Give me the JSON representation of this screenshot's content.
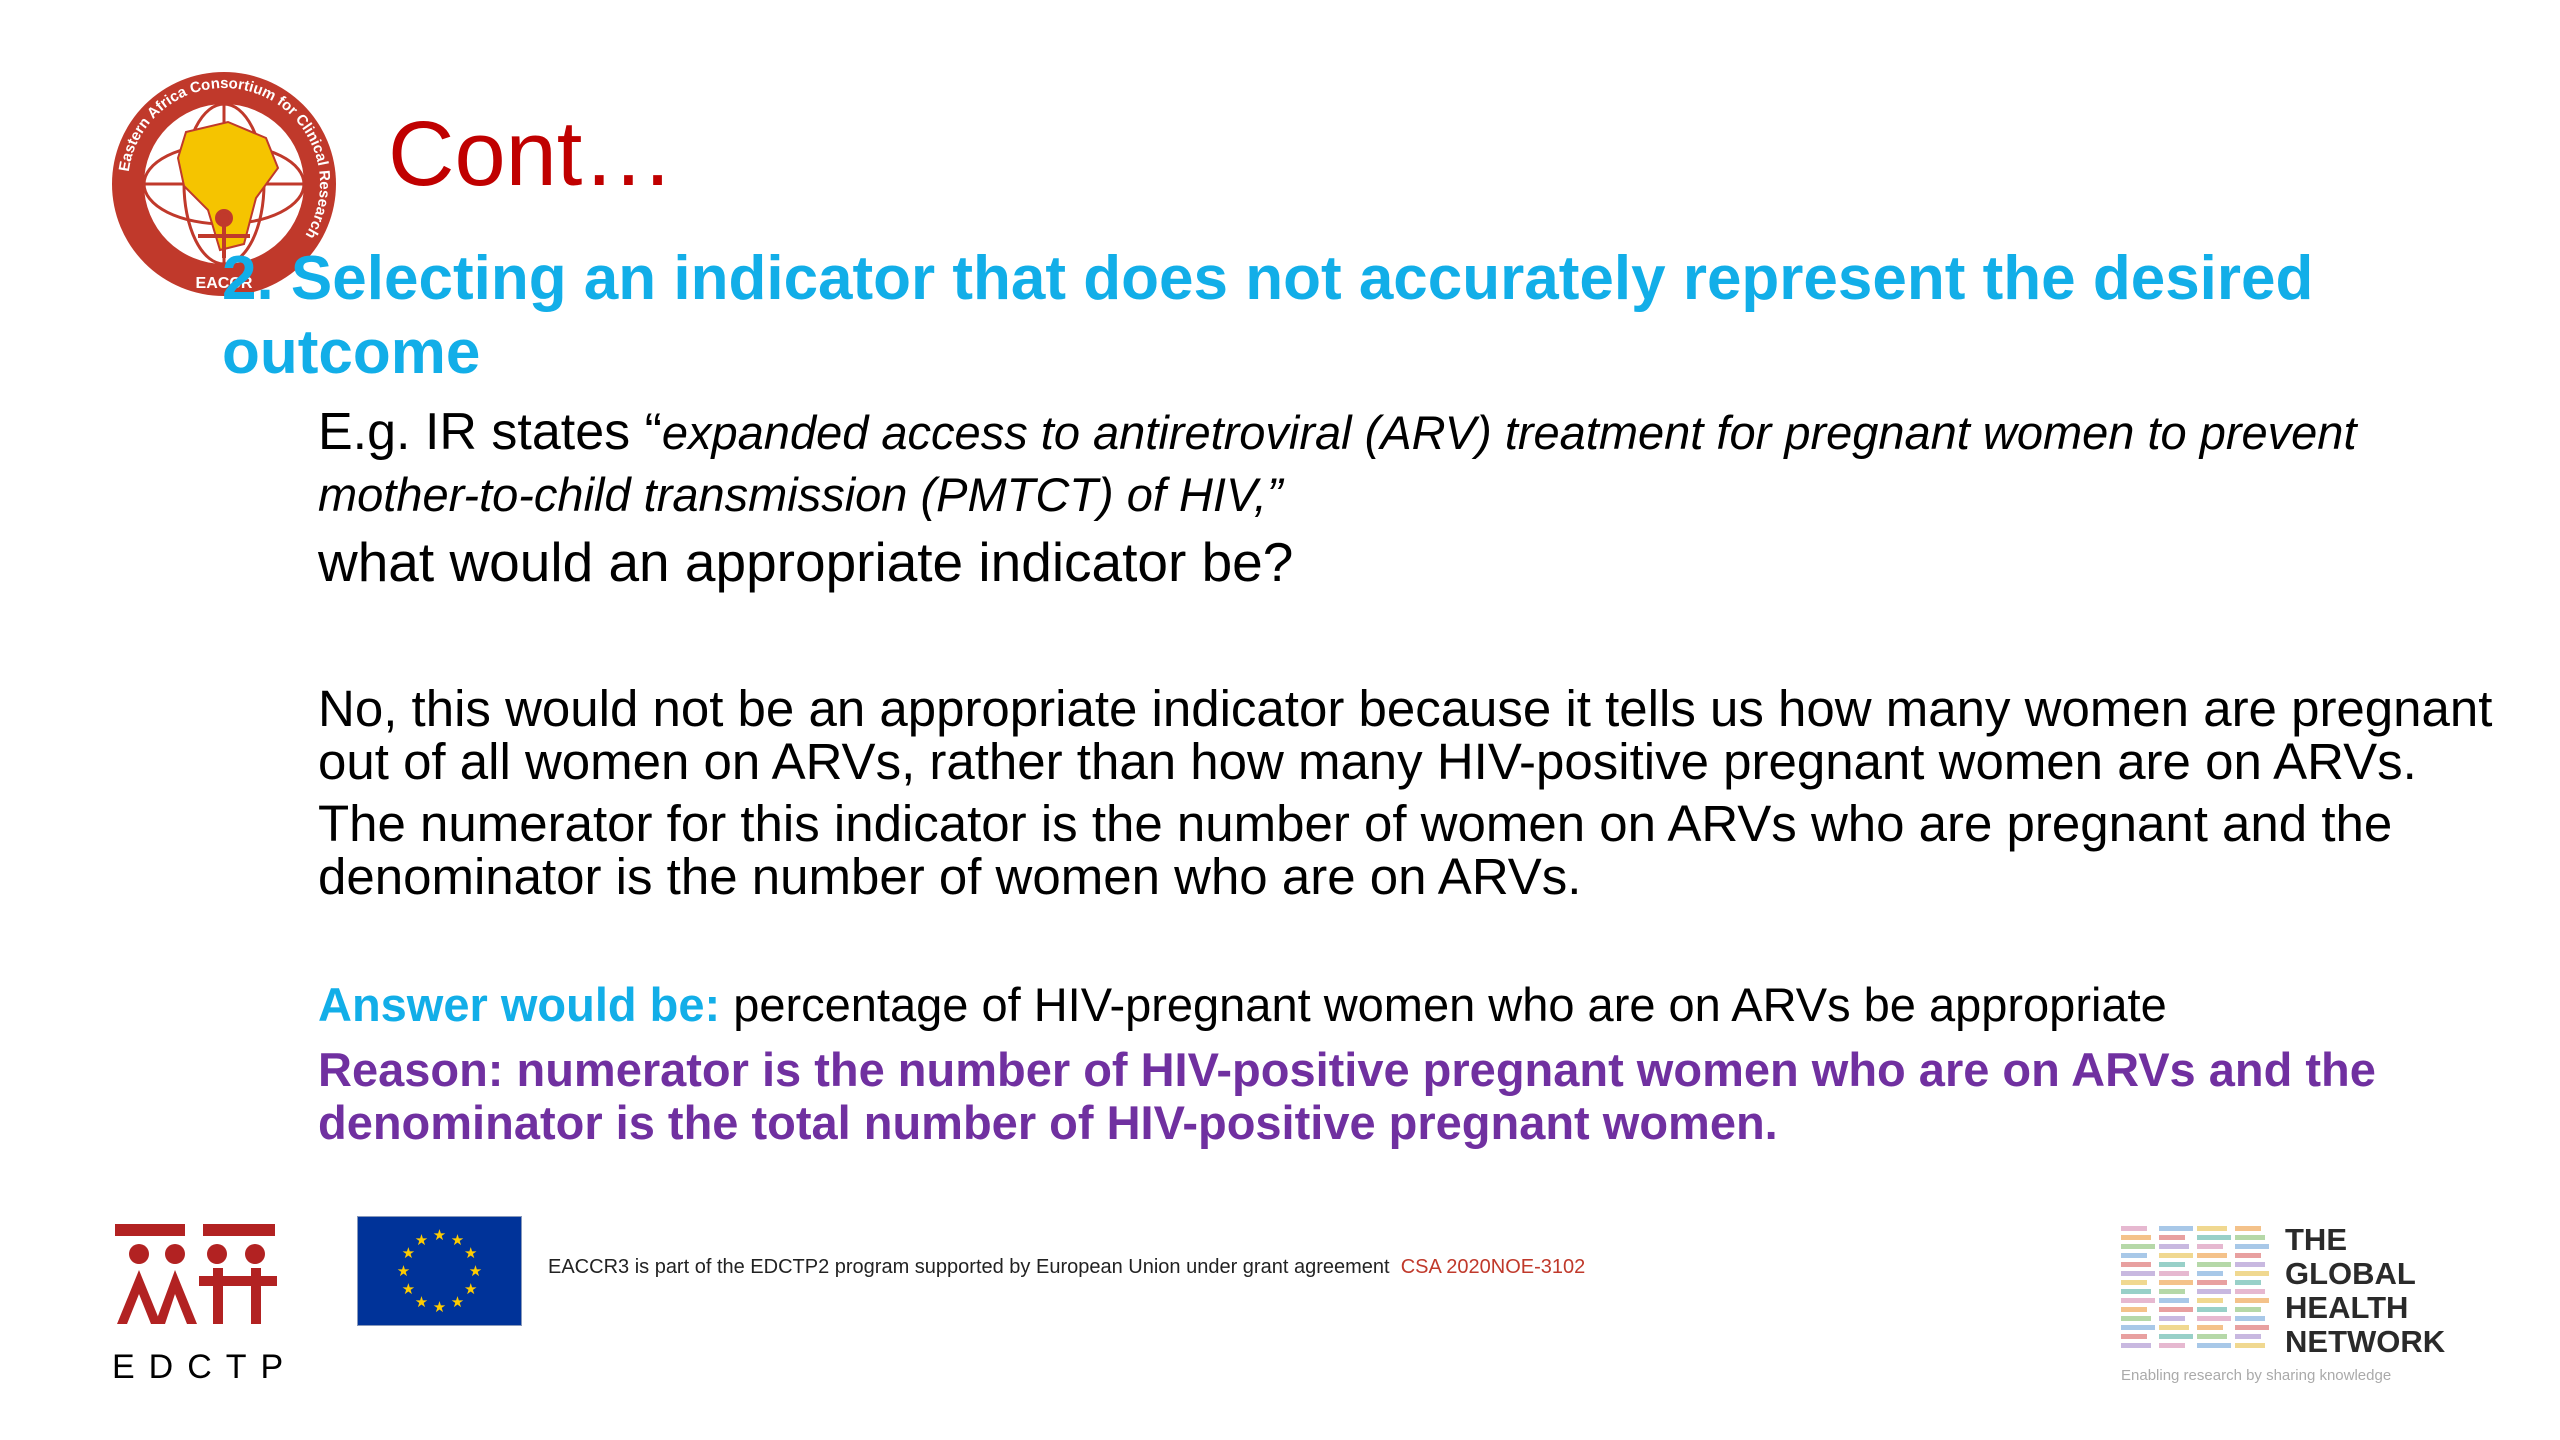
{
  "slide": {
    "title": "Cont…",
    "heading": "2. Selecting an indicator that does not accurately represent the desired outcome",
    "example": {
      "prefix": "E.g. IR states “",
      "quote_line1": "expanded access to antiretroviral (ARV) treatment for pregnant women to prevent",
      "quote_line2": "mother-to-child transmission (PMTCT) of HIV,”",
      "question": "what would an appropriate indicator be?"
    },
    "paragraph1": "No, this would not be an appropriate indicator because it tells us how many women are pregnant out of all women on ARVs, rather than how many HIV-positive pregnant women are on ARVs.",
    "paragraph2": "The numerator for this indicator is the number of women on ARVs who are pregnant and the denominator is the number of women who are on ARVs.",
    "answer_label": "Answer would be:",
    "answer_text": " percentage of HIV-pregnant women who are on ARVs be appropriate",
    "reason": "Reason: numerator is the number of HIV-positive pregnant women who are on ARVs and the denominator is the total number of HIV-positive pregnant women."
  },
  "footer": {
    "edctp_label": "EDCTP",
    "grant_text": "EACCR3 is part of the EDCTP2 program supported by European Union under grant agreement",
    "grant_code": "CSA 2020NOE-3102",
    "ghn": {
      "line1": "THE",
      "line2": "GLOBAL",
      "line3": "HEALTH",
      "line4": "NETWORK",
      "tagline": "Enabling research by sharing knowledge"
    },
    "eaccr_logo_text": "Eastern Africa Consortium for Clinical Research",
    "eaccr_short": "EACCR"
  },
  "colors": {
    "title": "#c00000",
    "heading": "#12aee8",
    "reason": "#7030a0",
    "eu_blue": "#003399",
    "eu_star": "#ffcc00",
    "edctp_red": "#b22222"
  }
}
